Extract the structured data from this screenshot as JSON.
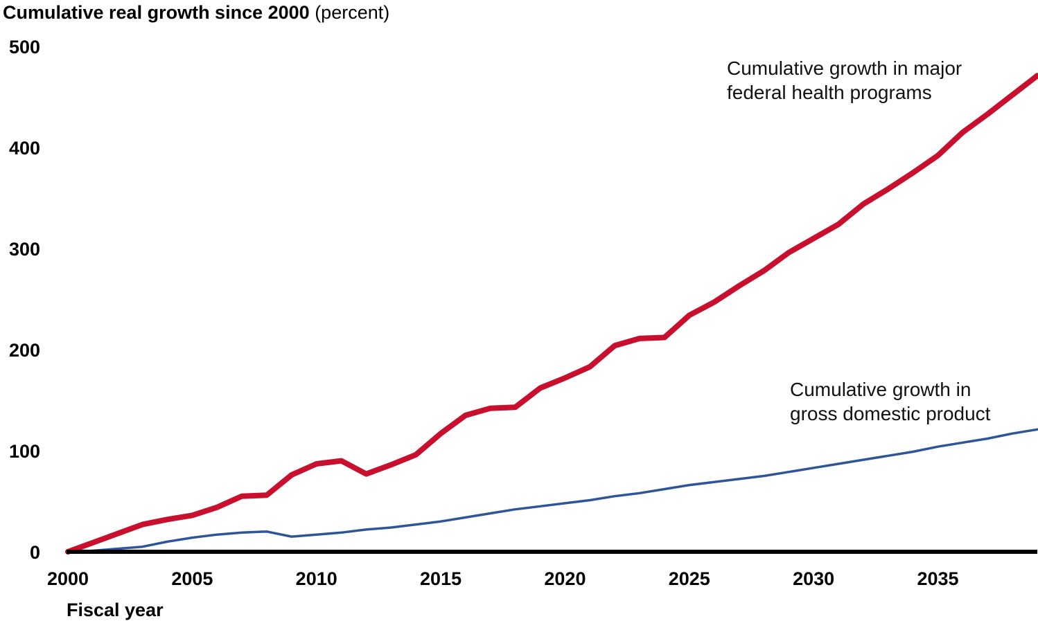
{
  "chart_data": {
    "type": "line",
    "title": "Cumulative real growth since 2000",
    "title_unit": "(percent)",
    "xlabel": "Fiscal year",
    "ylabel": "",
    "xlim": [
      2000,
      2039
    ],
    "ylim": [
      0,
      500
    ],
    "x_ticks": [
      2000,
      2005,
      2010,
      2015,
      2020,
      2025,
      2030,
      2035
    ],
    "y_ticks": [
      0,
      100,
      200,
      300,
      400,
      500
    ],
    "grid": false,
    "legend": "none",
    "x": [
      2000,
      2001,
      2002,
      2003,
      2004,
      2005,
      2006,
      2007,
      2008,
      2009,
      2010,
      2011,
      2012,
      2013,
      2014,
      2015,
      2016,
      2017,
      2018,
      2019,
      2020,
      2021,
      2022,
      2023,
      2024,
      2025,
      2026,
      2027,
      2028,
      2029,
      2030,
      2031,
      2032,
      2033,
      2034,
      2035,
      2036,
      2037,
      2038,
      2039
    ],
    "series": [
      {
        "label_lines": [
          "Cumulative growth in major",
          "federal health programs"
        ],
        "color": "#C8102E",
        "values": [
          0,
          9,
          18,
          27,
          32,
          36,
          44,
          55,
          56,
          76,
          87,
          90,
          77,
          86,
          96,
          117,
          135,
          142,
          143,
          162,
          172,
          183,
          204,
          211,
          212,
          234,
          247,
          263,
          278,
          296,
          310,
          324,
          344,
          359,
          375,
          392,
          415,
          433,
          452,
          471
        ]
      },
      {
        "label_lines": [
          "Cumulative growth in",
          "gross domestic product"
        ],
        "color": "#2E5597",
        "values": [
          0,
          1,
          3,
          5,
          10,
          14,
          17,
          19,
          20,
          15,
          17,
          19,
          22,
          24,
          27,
          30,
          34,
          38,
          42,
          45,
          48,
          51,
          55,
          58,
          62,
          66,
          69,
          72,
          75,
          79,
          83,
          87,
          91,
          95,
          99,
          104,
          108,
          112,
          117,
          121
        ]
      }
    ]
  }
}
